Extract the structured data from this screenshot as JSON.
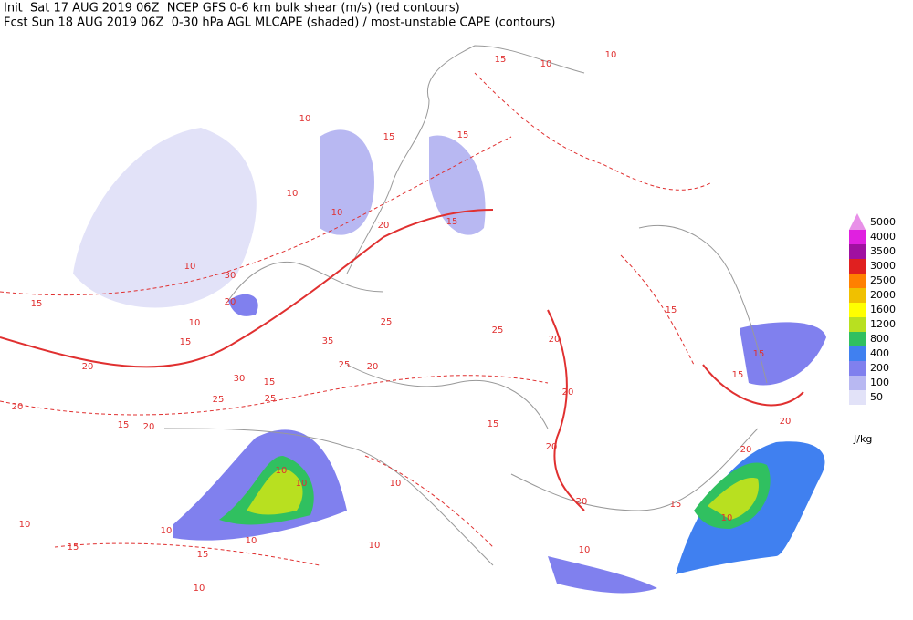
{
  "header": {
    "line1": "Init  Sat 17 AUG 2019 06Z  NCEP GFS 0-6 km bulk shear (m/s) (red contours)",
    "line2": "Fcst Sun 18 AUG 2019 06Z  0-30 hPa AGL MLCAPE (shaded) / most-unstable CAPE (contours)"
  },
  "legend": {
    "levels": [
      5000,
      4000,
      3500,
      3000,
      2500,
      2000,
      1600,
      1200,
      800,
      400,
      200,
      100,
      50
    ],
    "colors": [
      "#e890e8",
      "#e020e0",
      "#a010a0",
      "#e02020",
      "#ff8000",
      "#f0c000",
      "#ffff00",
      "#b8e020",
      "#30c060",
      "#4080f0",
      "#8080ee",
      "#b8b8f2",
      "#e2e2f8"
    ],
    "unit": "J/kg"
  },
  "contour_labels": [
    15,
    10,
    10,
    10,
    15,
    15,
    10,
    10,
    20,
    15,
    10,
    30,
    20,
    15,
    10,
    15,
    20,
    35,
    25,
    20,
    15,
    30,
    25,
    25,
    20,
    15,
    20,
    10,
    10,
    10,
    10,
    15,
    15,
    10,
    10,
    15,
    20,
    20,
    20,
    20,
    15,
    10,
    15,
    15,
    15,
    20,
    10,
    10,
    10,
    20,
    25,
    25
  ]
}
